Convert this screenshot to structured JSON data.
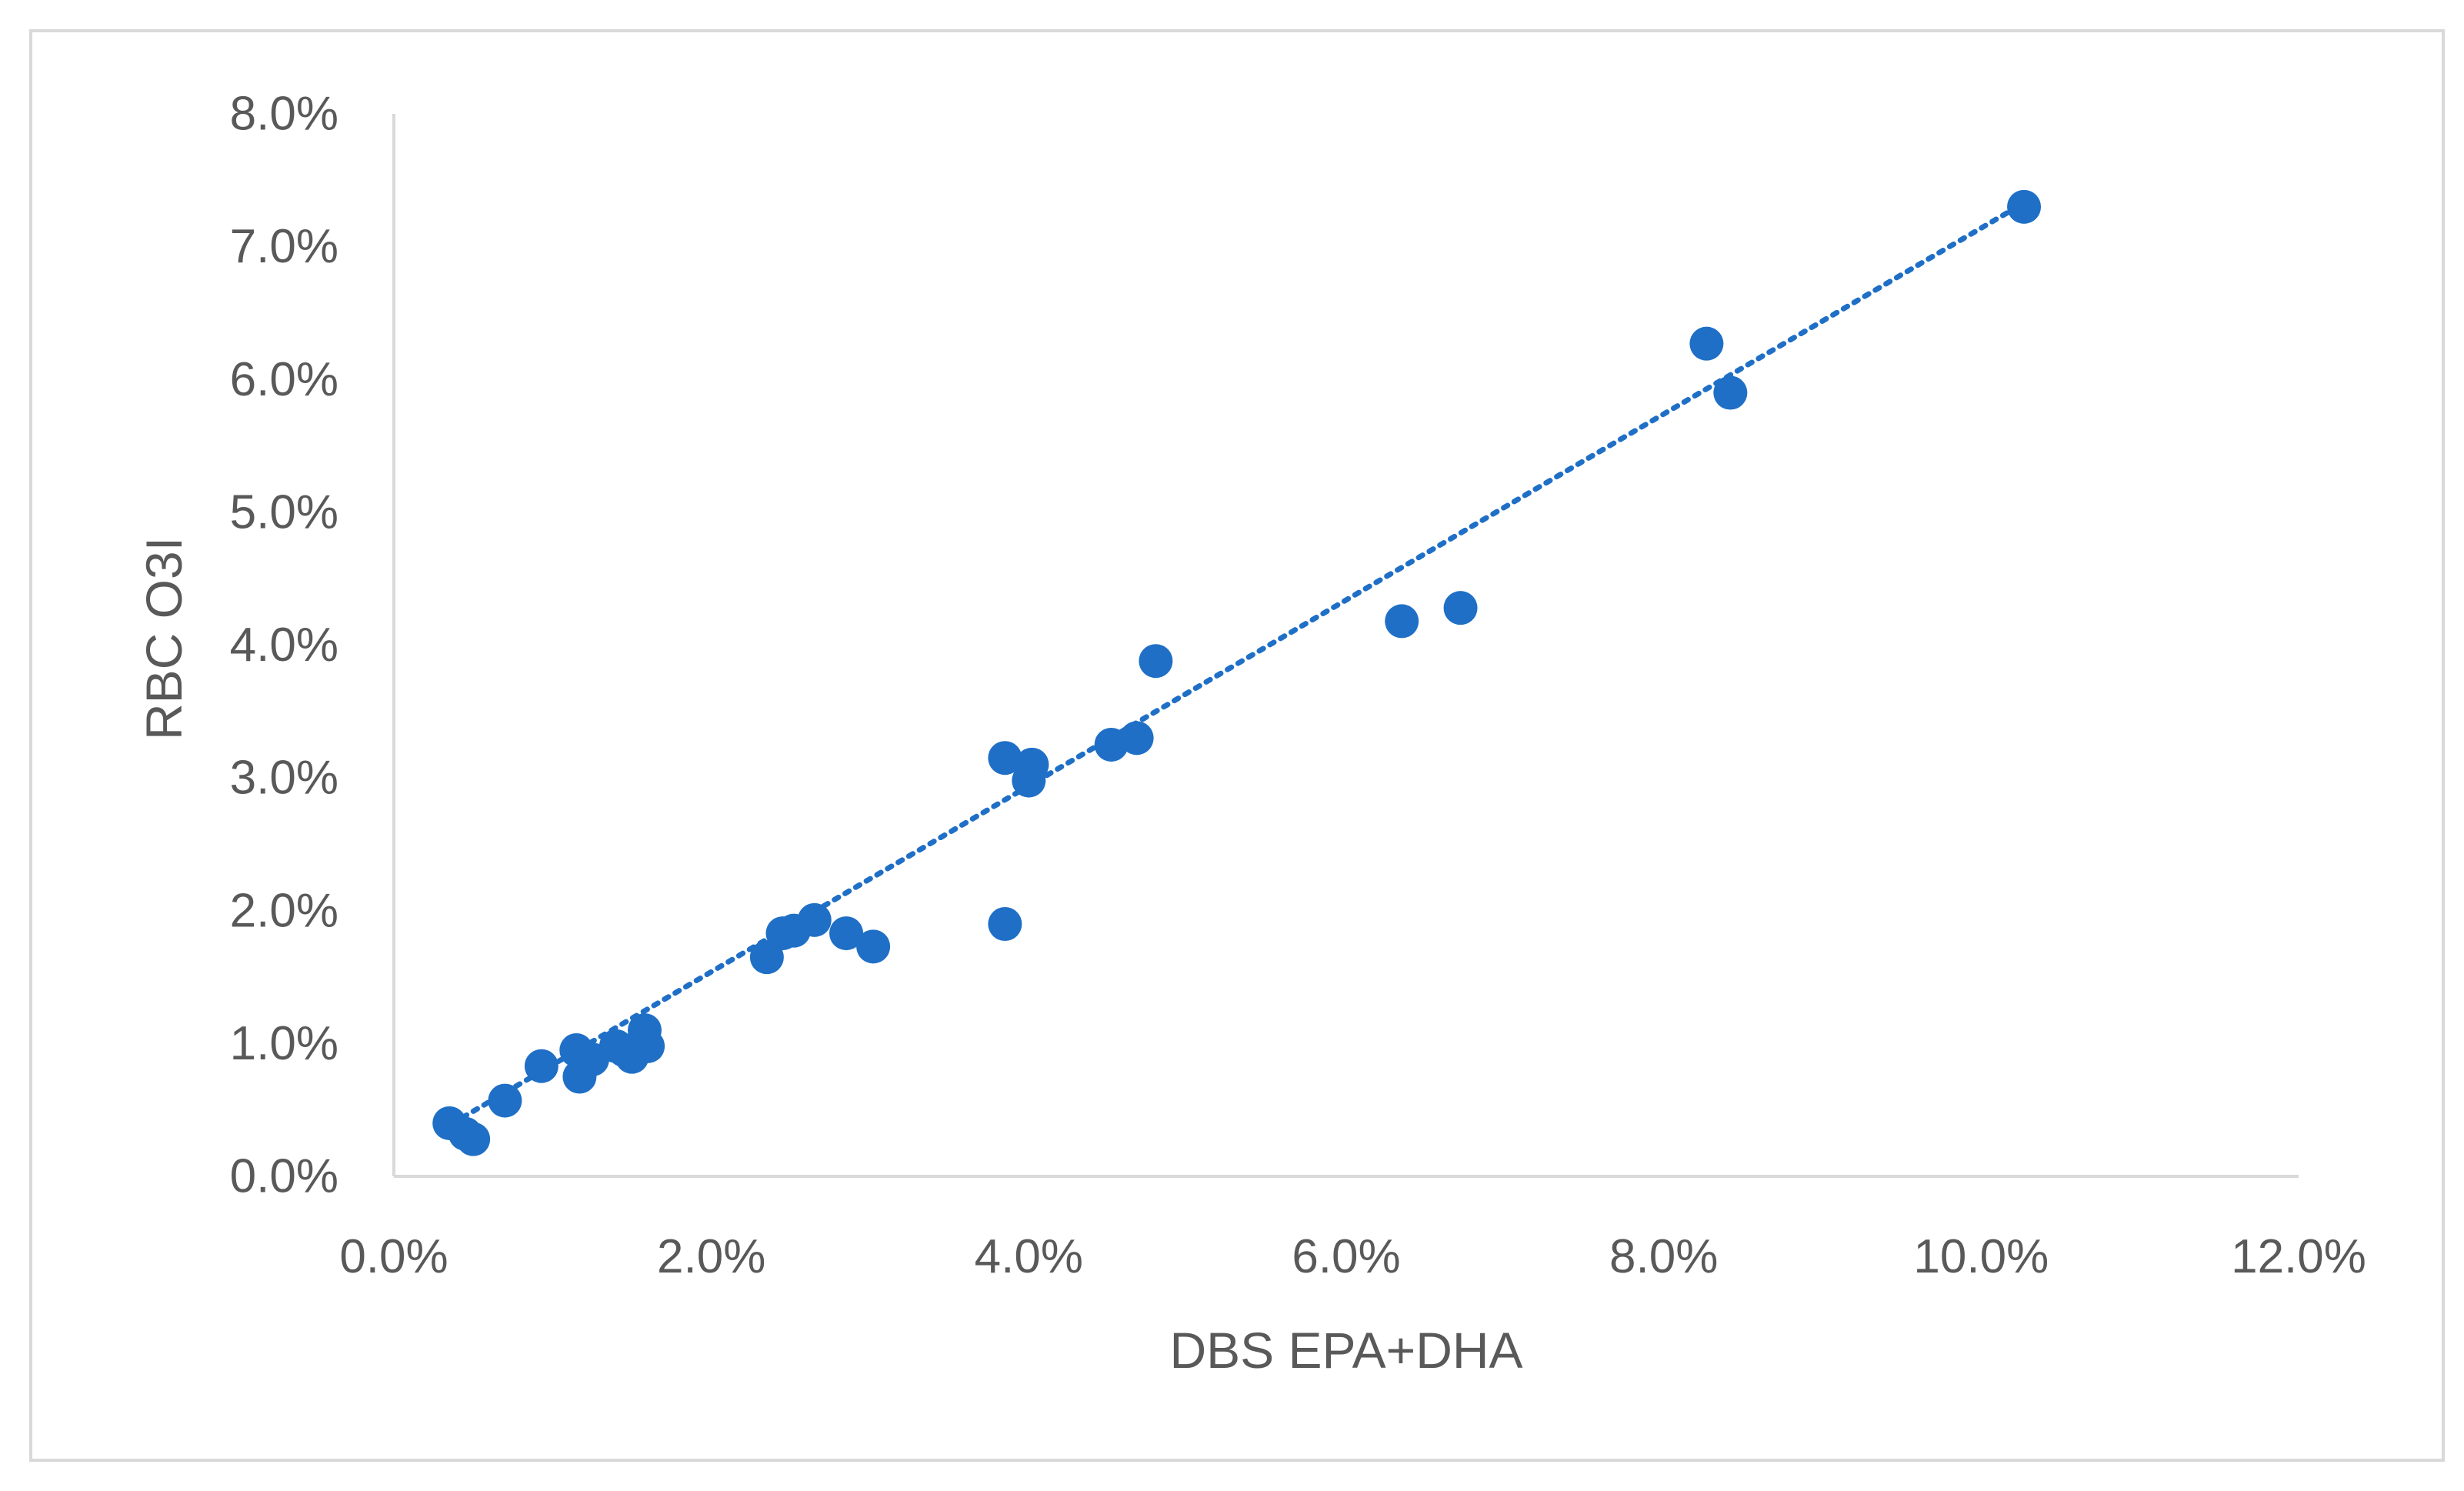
{
  "chart_data": {
    "type": "scatter",
    "title": "",
    "xlabel": "DBS EPA+DHA",
    "ylabel": "RBC O3I",
    "xlim": [
      0,
      12
    ],
    "ylim": [
      0,
      8
    ],
    "x_ticks": [
      "0.0%",
      "2.0%",
      "4.0%",
      "6.0%",
      "8.0%",
      "10.0%",
      "12.0%"
    ],
    "y_ticks": [
      "0.0%",
      "1.0%",
      "2.0%",
      "3.0%",
      "4.0%",
      "5.0%",
      "6.0%",
      "7.0%",
      "8.0%"
    ],
    "grid": false,
    "legend": "none",
    "marker_color": "#1f6fc6",
    "trendline": {
      "style": "dotted",
      "color": "#1f6fc6",
      "from": [
        0.3,
        0.35
      ],
      "to": [
        10.3,
        7.35
      ]
    },
    "points": [
      {
        "x": 0.35,
        "y": 0.4
      },
      {
        "x": 0.45,
        "y": 0.32
      },
      {
        "x": 0.5,
        "y": 0.28
      },
      {
        "x": 0.7,
        "y": 0.57
      },
      {
        "x": 0.93,
        "y": 0.83
      },
      {
        "x": 1.15,
        "y": 0.95
      },
      {
        "x": 1.17,
        "y": 0.75
      },
      {
        "x": 1.25,
        "y": 0.88
      },
      {
        "x": 1.4,
        "y": 0.98
      },
      {
        "x": 1.45,
        "y": 0.95
      },
      {
        "x": 1.5,
        "y": 0.9
      },
      {
        "x": 1.58,
        "y": 1.1
      },
      {
        "x": 1.6,
        "y": 0.98
      },
      {
        "x": 2.35,
        "y": 1.65
      },
      {
        "x": 2.45,
        "y": 1.83
      },
      {
        "x": 2.52,
        "y": 1.85
      },
      {
        "x": 2.65,
        "y": 1.93
      },
      {
        "x": 2.85,
        "y": 1.83
      },
      {
        "x": 3.02,
        "y": 1.73
      },
      {
        "x": 3.85,
        "y": 3.15
      },
      {
        "x": 3.85,
        "y": 1.9
      },
      {
        "x": 4.0,
        "y": 2.98
      },
      {
        "x": 4.02,
        "y": 3.1
      },
      {
        "x": 4.52,
        "y": 3.25
      },
      {
        "x": 4.68,
        "y": 3.3
      },
      {
        "x": 4.8,
        "y": 3.88
      },
      {
        "x": 6.35,
        "y": 4.18
      },
      {
        "x": 6.72,
        "y": 4.28
      },
      {
        "x": 8.27,
        "y": 6.27
      },
      {
        "x": 8.42,
        "y": 5.9
      },
      {
        "x": 10.27,
        "y": 7.3
      }
    ]
  }
}
